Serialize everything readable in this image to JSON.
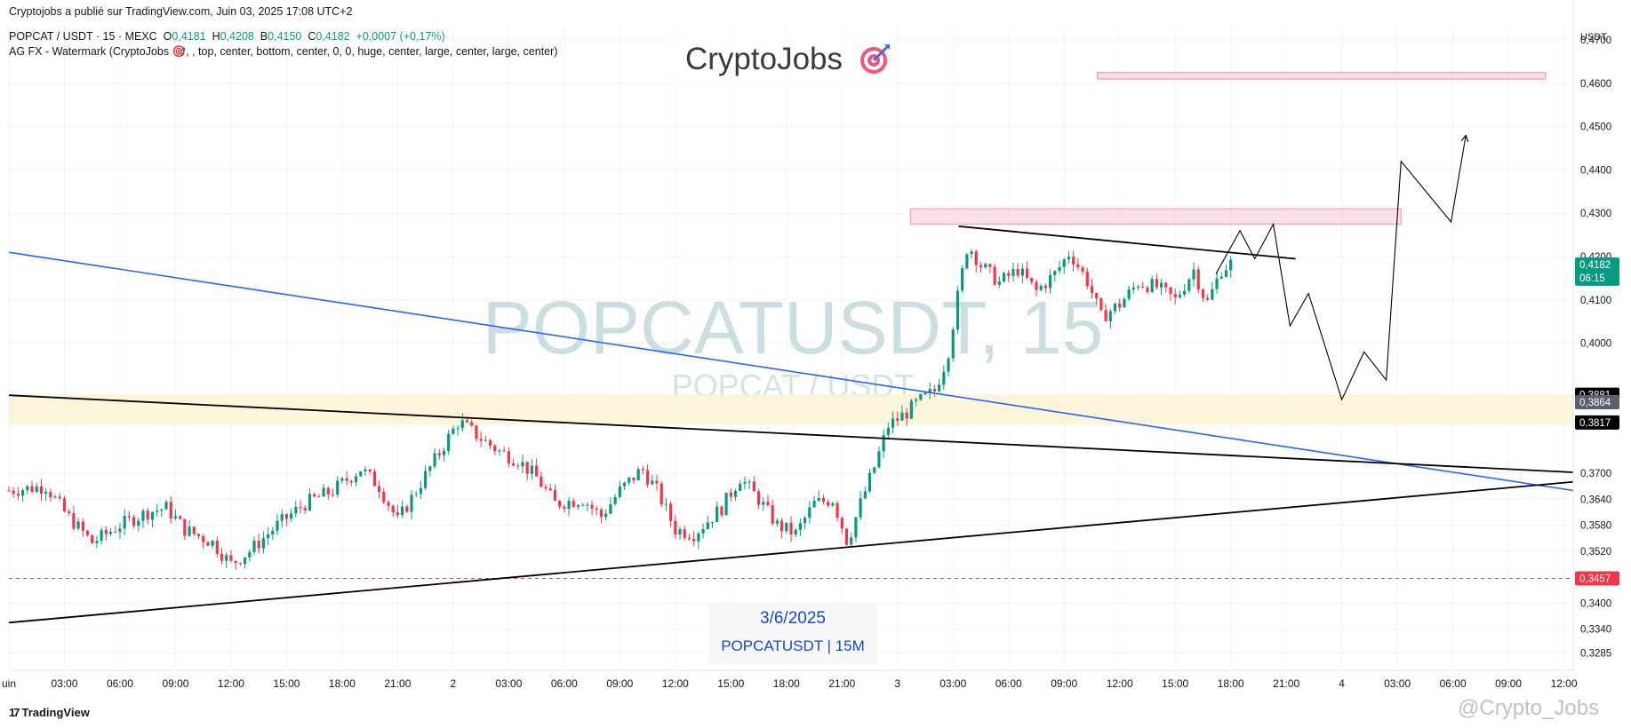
{
  "header": {
    "published": "Cryptojobs a publié sur TradingView.com, Juin 03, 2025 17:08 UTC+2",
    "symbol_line": "POPCAT / USDT · 15 · MEXC",
    "ohlc": {
      "o_label": "O",
      "o": "0,4181",
      "h_label": "H",
      "h": "0,4208",
      "b_label": "B",
      "b": "0,4150",
      "c_label": "C",
      "c": "0,4182",
      "chg": "+0,0007 (+0,17%)"
    },
    "indicator_line": "AG FX - Watermark (CryptoJobs 🎯, , top, center, bottom, center, 0, 0, huge, center, large, center, large, center)"
  },
  "brand": {
    "text": "CryptoJobs",
    "icon": "target-icon"
  },
  "watermark": {
    "big": "POPCATUSDT, 15",
    "small": "POPCAT / USDT"
  },
  "note": {
    "date": "3/6/2025",
    "subtitle": "POPCATUSDT | 15M"
  },
  "footer": {
    "logo_text": "TradingView",
    "watermark": "@Crypto_Jobs"
  },
  "currency": "USDT",
  "colors": {
    "up": "#089981",
    "down": "#f23645",
    "blue_line": "#2962ff",
    "zone_pink": "#f7a8b8",
    "zone_yellow": "#fbf3cf",
    "dashed": "#f23645",
    "price_badge": "#089981"
  },
  "chart_data": {
    "type": "candlestick",
    "x_ticks": [
      "uin",
      "03:00",
      "06:00",
      "09:00",
      "12:00",
      "15:00",
      "18:00",
      "21:00",
      "2",
      "03:00",
      "06:00",
      "09:00",
      "12:00",
      "15:00",
      "18:00",
      "21:00",
      "3",
      "03:00",
      "06:00",
      "09:00",
      "12:00",
      "15:00",
      "18:00",
      "21:00",
      "4",
      "03:00",
      "06:00",
      "09:00",
      "12:00"
    ],
    "x_tick_hours": [
      0,
      3,
      6,
      9,
      12,
      15,
      18,
      21,
      24,
      27,
      30,
      33,
      36,
      39,
      42,
      45,
      48,
      51,
      54,
      57,
      60,
      63,
      66,
      69,
      72,
      75,
      78,
      81,
      84
    ],
    "x_range_hours": [
      0,
      84.5
    ],
    "y_ticks": [
      "0,4700",
      "0,4600",
      "0,4500",
      "0,4400",
      "0,4300",
      "0,4200",
      "0,4100",
      "0,4000",
      "0,3700",
      "0,3640",
      "0,3580",
      "0,3520",
      "0,3400",
      "0,3340",
      "0,3285"
    ],
    "y_tick_values": [
      0.47,
      0.46,
      0.45,
      0.44,
      0.43,
      0.42,
      0.41,
      0.4,
      0.37,
      0.364,
      0.358,
      0.352,
      0.34,
      0.334,
      0.3285
    ],
    "y_range": [
      0.3245,
      0.4735
    ],
    "price_labels": [
      {
        "text": "0,4182",
        "value": 0.4182,
        "sub": "06:15",
        "style": "current"
      },
      {
        "text": "0,3881",
        "value": 0.3881,
        "style": "dark"
      },
      {
        "text": "0,3864",
        "value": 0.3864,
        "style": "gray"
      },
      {
        "text": "0,3817",
        "value": 0.3817,
        "style": "dark"
      },
      {
        "text": "0,3457",
        "value": 0.3457,
        "style": "red"
      }
    ],
    "anchors": [
      [
        0,
        0.366
      ],
      [
        2,
        0.367
      ],
      [
        3,
        0.361
      ],
      [
        4.5,
        0.354
      ],
      [
        6,
        0.358
      ],
      [
        7.5,
        0.361
      ],
      [
        8.5,
        0.362
      ],
      [
        9.5,
        0.357
      ],
      [
        11,
        0.354
      ],
      [
        12,
        0.349
      ],
      [
        13,
        0.352
      ],
      [
        14.5,
        0.358
      ],
      [
        16,
        0.363
      ],
      [
        17.5,
        0.366
      ],
      [
        19,
        0.371
      ],
      [
        20,
        0.367
      ],
      [
        21,
        0.359
      ],
      [
        22,
        0.366
      ],
      [
        23,
        0.373
      ],
      [
        24.3,
        0.382
      ],
      [
        25.5,
        0.378
      ],
      [
        26.5,
        0.375
      ],
      [
        27.5,
        0.373
      ],
      [
        28.5,
        0.369
      ],
      [
        29.5,
        0.363
      ],
      [
        31,
        0.364
      ],
      [
        32,
        0.36
      ],
      [
        33,
        0.366
      ],
      [
        34.2,
        0.371
      ],
      [
        35,
        0.366
      ],
      [
        36,
        0.357
      ],
      [
        37,
        0.356
      ],
      [
        38.5,
        0.362
      ],
      [
        39.5,
        0.369
      ],
      [
        40.5,
        0.364
      ],
      [
        41.5,
        0.358
      ],
      [
        42.5,
        0.356
      ],
      [
        43.5,
        0.363
      ],
      [
        44.5,
        0.364
      ],
      [
        45.3,
        0.354
      ],
      [
        46,
        0.363
      ],
      [
        46.8,
        0.372
      ],
      [
        47.5,
        0.381
      ],
      [
        48.5,
        0.384
      ],
      [
        49,
        0.386
      ],
      [
        50,
        0.389
      ],
      [
        50.7,
        0.397
      ],
      [
        51.3,
        0.412
      ],
      [
        51.8,
        0.423
      ],
      [
        52.5,
        0.418
      ],
      [
        53.5,
        0.414
      ],
      [
        54.5,
        0.417
      ],
      [
        55.5,
        0.412
      ],
      [
        56.5,
        0.416
      ],
      [
        57.3,
        0.421
      ],
      [
        58.3,
        0.414
      ],
      [
        59,
        0.406
      ],
      [
        60,
        0.409
      ],
      [
        61,
        0.414
      ],
      [
        62,
        0.413
      ],
      [
        63,
        0.41
      ],
      [
        64,
        0.417
      ],
      [
        64.7,
        0.409
      ],
      [
        65.5,
        0.417
      ],
      [
        66.2,
        0.419
      ]
    ],
    "series_note": "15-minute candles, POPCAT/USDT, 1–3 June 2025",
    "levels": [
      {
        "type": "zone",
        "from": 0.3812,
        "to": 0.3882,
        "x_hours": [
          0,
          84.5
        ]
      },
      {
        "type": "zone",
        "from": 0.4275,
        "to": 0.431,
        "x_hours": [
          48.7,
          75.2
        ]
      },
      {
        "type": "zone",
        "from": 0.461,
        "to": 0.4625,
        "x_hours": [
          58.8,
          83
        ]
      },
      {
        "type": "dashed",
        "value": 0.3457
      }
    ],
    "trendlines": [
      {
        "color": "blue",
        "from": [
          0,
          0.421
        ],
        "to": [
          84.5,
          0.366
        ]
      },
      {
        "color": "black",
        "from": [
          0,
          0.388
        ],
        "to": [
          84.5,
          0.3702
        ]
      },
      {
        "color": "black",
        "from": [
          0,
          0.3355
        ],
        "to": [
          84.5,
          0.368
        ]
      },
      {
        "color": "black",
        "from": [
          51.3,
          0.427
        ],
        "to": [
          69.5,
          0.4195
        ]
      }
    ],
    "projection": [
      [
        65.2,
        0.416
      ],
      [
        66.5,
        0.426
      ],
      [
        67.3,
        0.4195
      ],
      [
        68.3,
        0.4275
      ],
      [
        69.2,
        0.404
      ],
      [
        70.2,
        0.4115
      ],
      [
        72,
        0.387
      ],
      [
        73.2,
        0.398
      ],
      [
        74.4,
        0.3915
      ],
      [
        75.2,
        0.442
      ],
      [
        77.9,
        0.428
      ],
      [
        78.7,
        0.448
      ]
    ]
  }
}
